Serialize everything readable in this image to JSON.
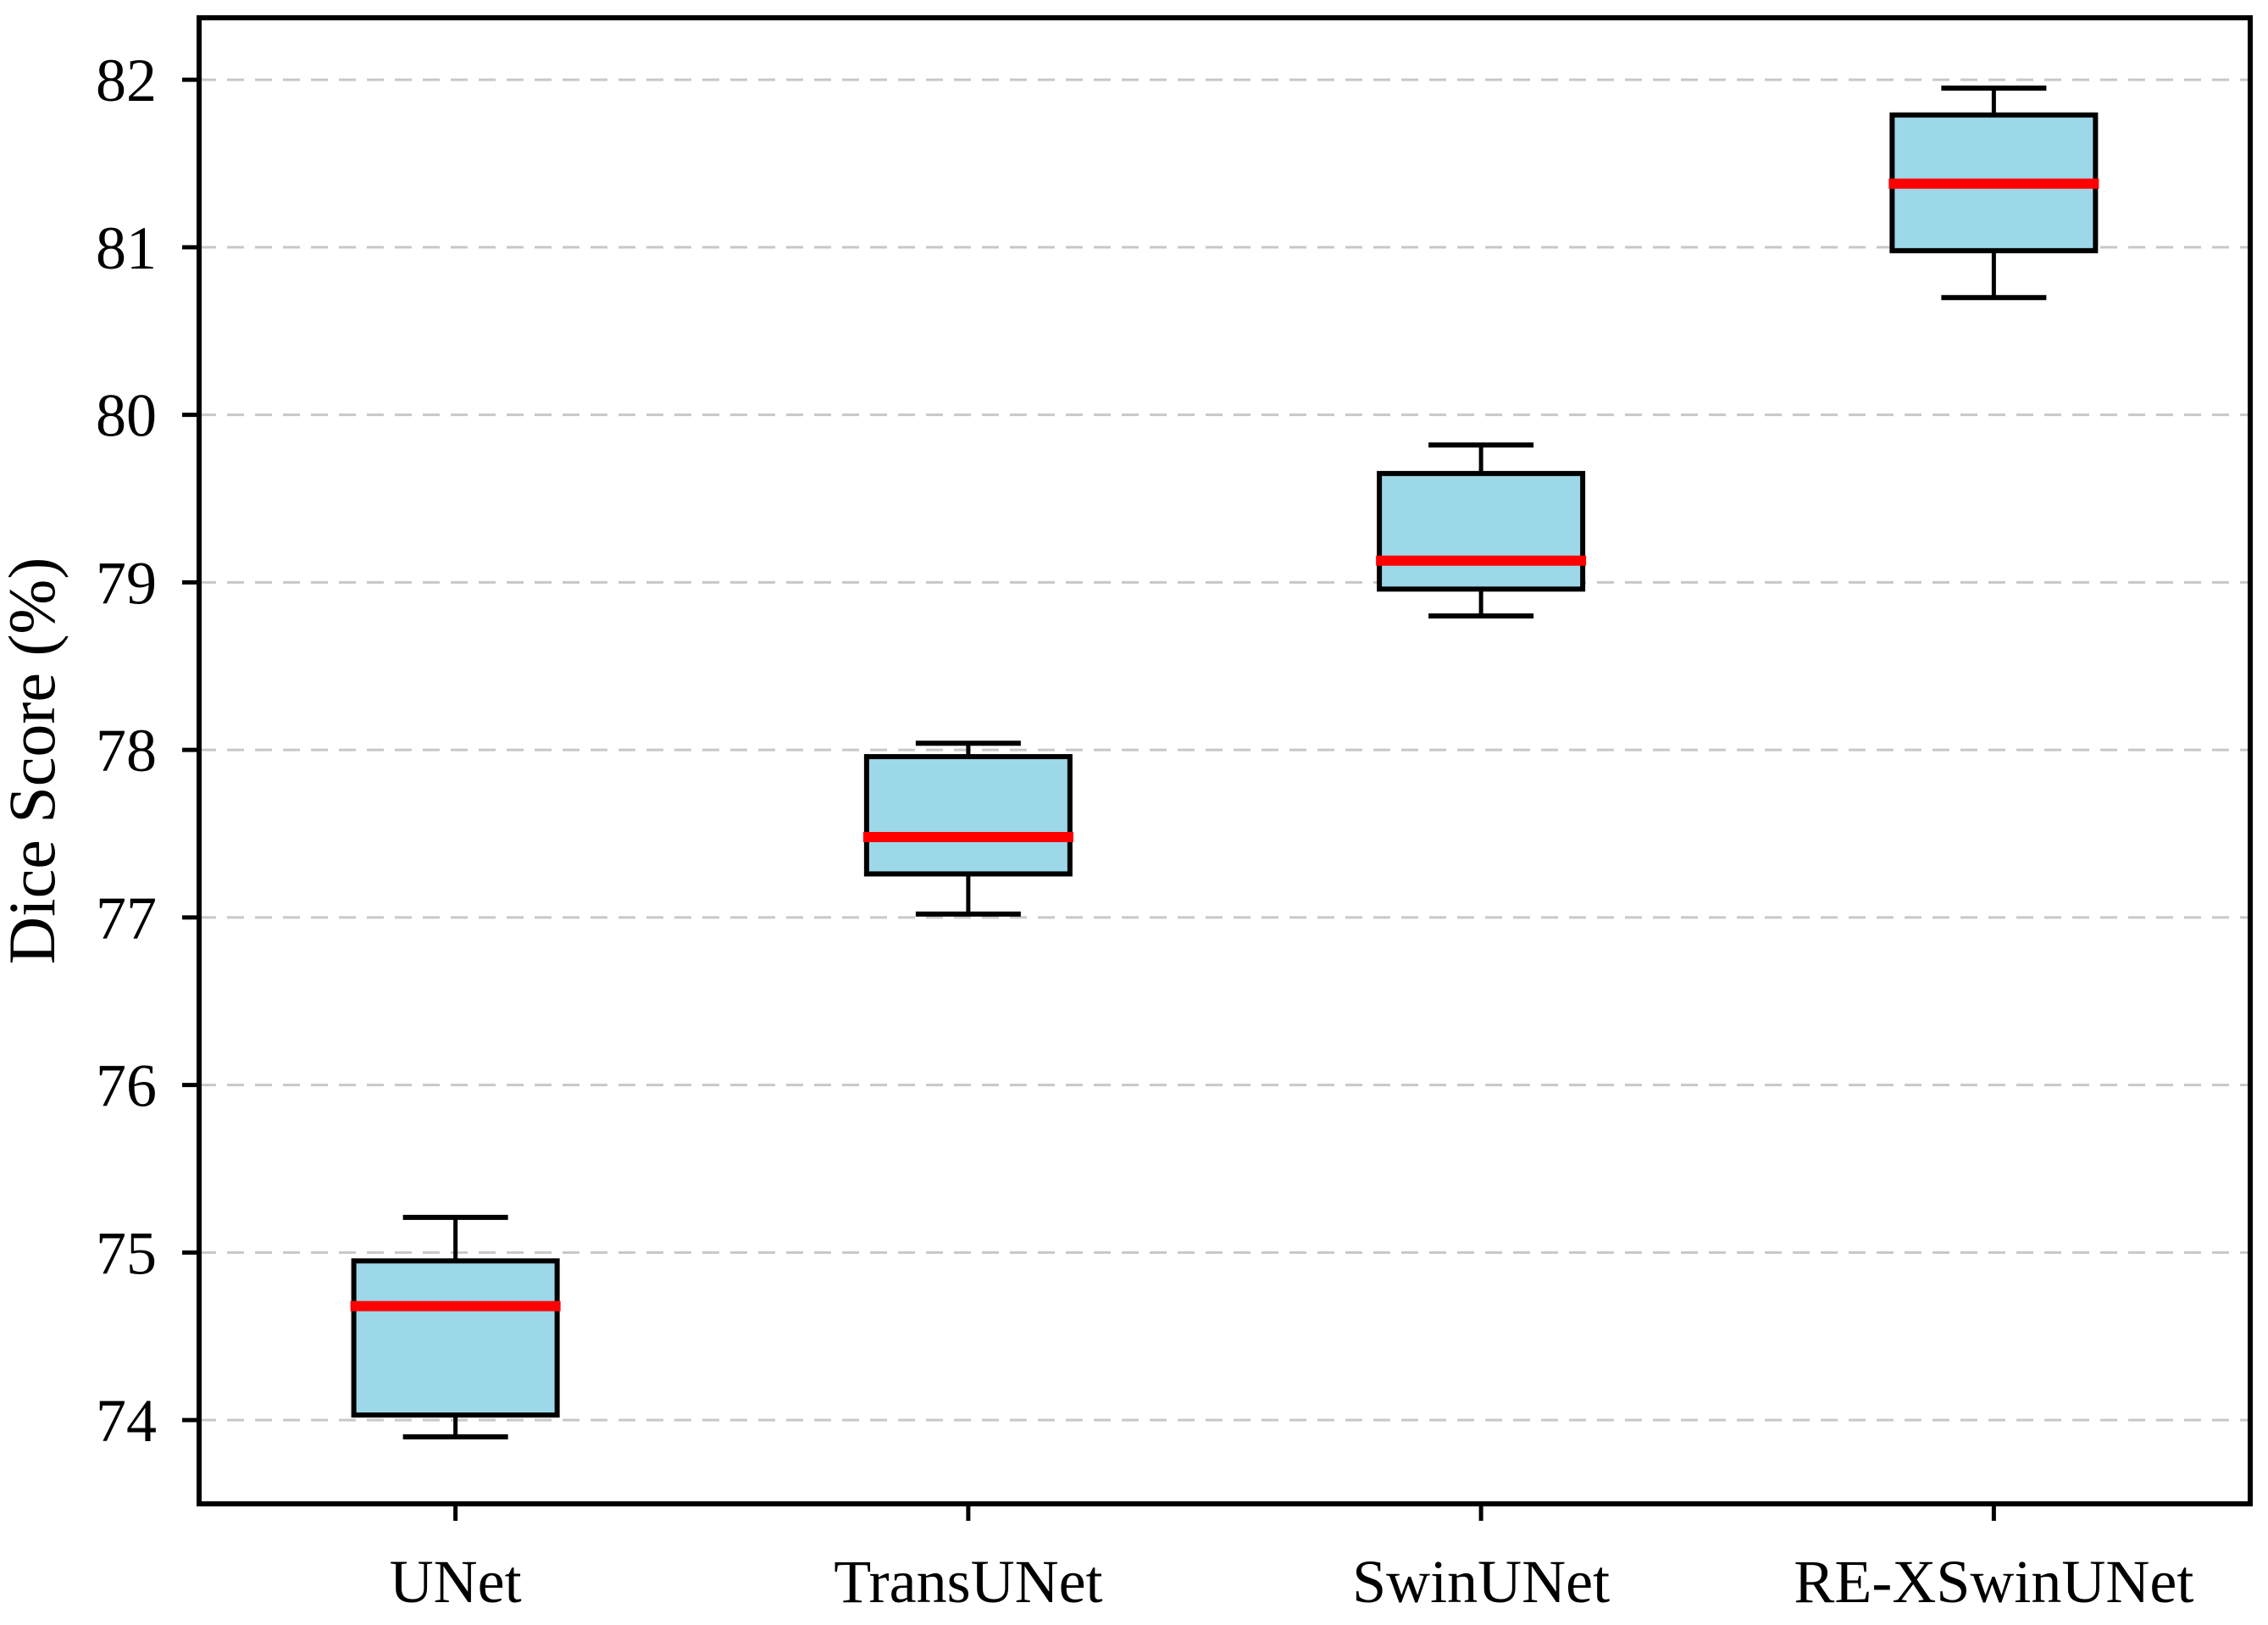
{
  "figure": {
    "background": "#ffffff"
  },
  "chart_data": {
    "type": "boxplot",
    "title": "",
    "xlabel": "",
    "ylabel": "Dice Score (%)",
    "categories": [
      "UNet",
      "TransUNet",
      "SwinUNet",
      "RE-XSwinUNet"
    ],
    "series": [
      {
        "name": "UNet",
        "whislo": 73.9,
        "q1": 74.03,
        "med": 74.68,
        "q3": 74.95,
        "whishi": 75.21
      },
      {
        "name": "TransUNet",
        "whislo": 77.02,
        "q1": 77.26,
        "med": 77.48,
        "q3": 77.96,
        "whishi": 78.04
      },
      {
        "name": "SwinUNet",
        "whislo": 78.8,
        "q1": 78.96,
        "med": 79.13,
        "q3": 79.65,
        "whishi": 79.82
      },
      {
        "name": "RE-XSwinUNet",
        "whislo": 80.7,
        "q1": 80.98,
        "med": 81.38,
        "q3": 81.79,
        "whishi": 81.95
      }
    ],
    "yticks": [
      74,
      75,
      76,
      77,
      78,
      79,
      80,
      81,
      82
    ],
    "ylim": [
      73.5,
      82.37
    ],
    "grid": "horizontal-dashed",
    "legend": "none",
    "colors": {
      "box_fill": "#9CD8E8",
      "box_edge": "#000000",
      "median": "#FF0000",
      "whisker": "#000000",
      "grid": "#C8C8C8",
      "spine": "#000000",
      "text": "#000000"
    }
  }
}
